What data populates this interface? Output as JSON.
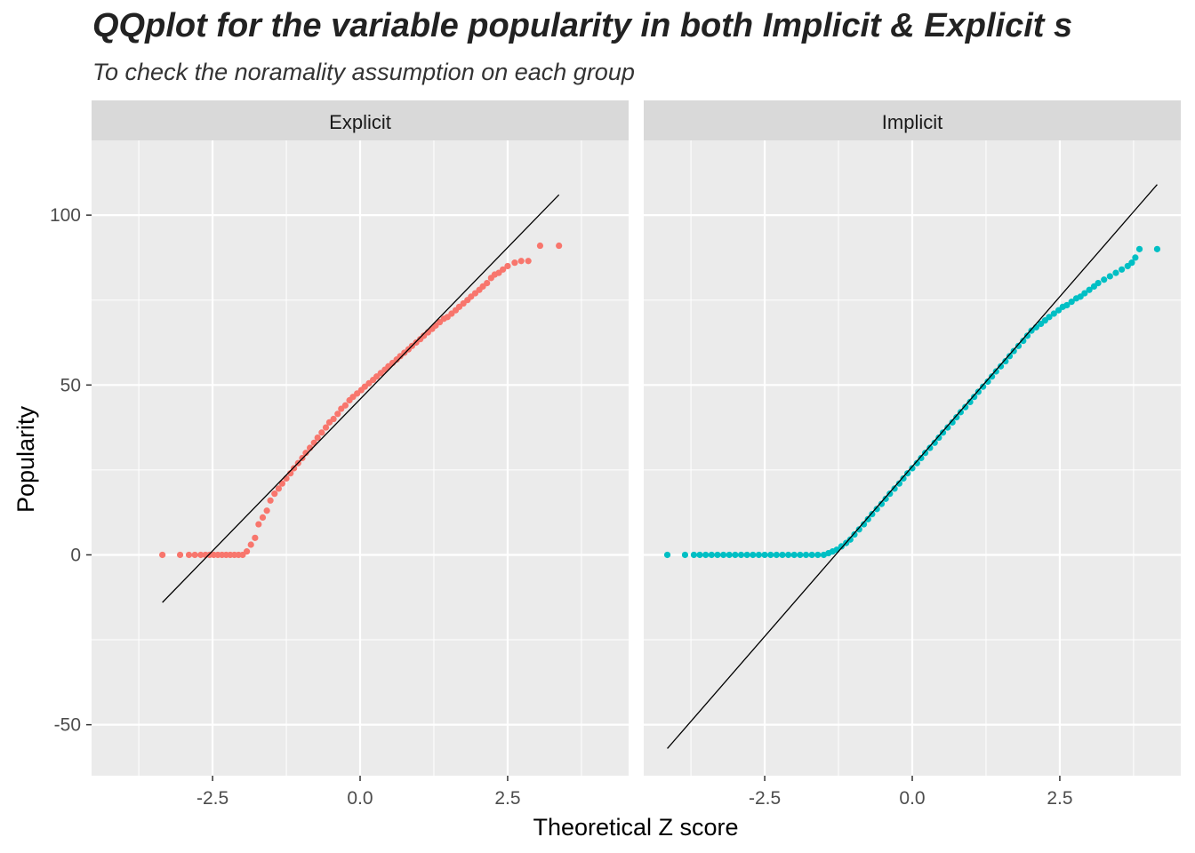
{
  "chart_data": {
    "type": "scatter",
    "title": "QQplot for the variable popularity in both Implicit & Explicit s",
    "subtitle": "To check the noramality assumption on each group",
    "xlabel": "Theoretical Z score",
    "ylabel": "Popularity",
    "xlim": [
      -4.55,
      4.55
    ],
    "ylim": [
      -65,
      122
    ],
    "x_ticks": [
      -2.5,
      0.0,
      2.5
    ],
    "x_tick_labels": [
      "-2.5",
      "0.0",
      "2.5"
    ],
    "y_ticks": [
      -50,
      0,
      50,
      100
    ],
    "y_tick_labels": [
      "-50",
      "0",
      "50",
      "100"
    ],
    "grid": true,
    "legend": "none",
    "panels": [
      {
        "name": "Explicit",
        "color": "#F8766D",
        "reference_line": {
          "x": [
            -3.35,
            3.37
          ],
          "y": [
            -14,
            106
          ]
        },
        "points": [
          [
            -3.35,
            0
          ],
          [
            -3.05,
            0
          ],
          [
            -2.9,
            0
          ],
          [
            -2.8,
            0
          ],
          [
            -2.7,
            0
          ],
          [
            -2.62,
            0
          ],
          [
            -2.55,
            0
          ],
          [
            -2.48,
            0
          ],
          [
            -2.41,
            0
          ],
          [
            -2.34,
            0
          ],
          [
            -2.27,
            0
          ],
          [
            -2.2,
            0
          ],
          [
            -2.13,
            0
          ],
          [
            -2.06,
            0
          ],
          [
            -1.99,
            0
          ],
          [
            -1.92,
            1
          ],
          [
            -1.85,
            3
          ],
          [
            -1.78,
            5
          ],
          [
            -1.72,
            9
          ],
          [
            -1.65,
            11
          ],
          [
            -1.58,
            13
          ],
          [
            -1.52,
            16
          ],
          [
            -1.45,
            18
          ],
          [
            -1.38,
            19.5
          ],
          [
            -1.32,
            21
          ],
          [
            -1.25,
            22.5
          ],
          [
            -1.18,
            24
          ],
          [
            -1.12,
            25.5
          ],
          [
            -1.05,
            27
          ],
          [
            -0.98,
            28.5
          ],
          [
            -0.92,
            30
          ],
          [
            -0.85,
            31.5
          ],
          [
            -0.78,
            33
          ],
          [
            -0.72,
            34.5
          ],
          [
            -0.65,
            36
          ],
          [
            -0.58,
            37.5
          ],
          [
            -0.52,
            39
          ],
          [
            -0.45,
            40
          ],
          [
            -0.38,
            41.5
          ],
          [
            -0.32,
            43
          ],
          [
            -0.25,
            44
          ],
          [
            -0.18,
            45.5
          ],
          [
            -0.12,
            46.5
          ],
          [
            -0.05,
            47.5
          ],
          [
            0.02,
            48.5
          ],
          [
            0.08,
            49.5
          ],
          [
            0.15,
            50.5
          ],
          [
            0.22,
            51.5
          ],
          [
            0.28,
            52.5
          ],
          [
            0.35,
            53.5
          ],
          [
            0.42,
            54.5
          ],
          [
            0.48,
            55.5
          ],
          [
            0.55,
            56.5
          ],
          [
            0.62,
            57.5
          ],
          [
            0.68,
            58.5
          ],
          [
            0.75,
            59.5
          ],
          [
            0.82,
            60.5
          ],
          [
            0.88,
            61.5
          ],
          [
            0.95,
            62.5
          ],
          [
            1.02,
            63.5
          ],
          [
            1.08,
            64.5
          ],
          [
            1.15,
            65.5
          ],
          [
            1.22,
            66.5
          ],
          [
            1.28,
            67.5
          ],
          [
            1.35,
            68.5
          ],
          [
            1.42,
            69.5
          ],
          [
            1.48,
            70
          ],
          [
            1.55,
            71
          ],
          [
            1.62,
            72
          ],
          [
            1.68,
            73
          ],
          [
            1.75,
            74
          ],
          [
            1.82,
            75
          ],
          [
            1.88,
            76
          ],
          [
            1.95,
            77
          ],
          [
            2.02,
            78
          ],
          [
            2.08,
            79
          ],
          [
            2.15,
            80
          ],
          [
            2.22,
            81.5
          ],
          [
            2.28,
            82.5
          ],
          [
            2.35,
            83
          ],
          [
            2.42,
            84
          ],
          [
            2.5,
            85
          ],
          [
            2.62,
            86
          ],
          [
            2.73,
            86.5
          ],
          [
            2.85,
            86.5
          ],
          [
            3.05,
            91
          ],
          [
            3.37,
            91
          ]
        ]
      },
      {
        "name": "Implicit",
        "color": "#00BFC4",
        "reference_line": {
          "x": [
            -4.15,
            4.15
          ],
          "y": [
            -57,
            109
          ]
        },
        "points": [
          [
            -4.15,
            0
          ],
          [
            -3.85,
            0
          ],
          [
            -3.7,
            0
          ],
          [
            -3.6,
            0
          ],
          [
            -3.5,
            0
          ],
          [
            -3.4,
            0
          ],
          [
            -3.3,
            0
          ],
          [
            -3.2,
            0
          ],
          [
            -3.1,
            0
          ],
          [
            -3.0,
            0
          ],
          [
            -2.9,
            0
          ],
          [
            -2.8,
            0
          ],
          [
            -2.7,
            0
          ],
          [
            -2.6,
            0
          ],
          [
            -2.5,
            0
          ],
          [
            -2.4,
            0
          ],
          [
            -2.3,
            0
          ],
          [
            -2.2,
            0
          ],
          [
            -2.1,
            0
          ],
          [
            -2.0,
            0
          ],
          [
            -1.9,
            0
          ],
          [
            -1.8,
            0
          ],
          [
            -1.7,
            0
          ],
          [
            -1.6,
            0
          ],
          [
            -1.5,
            0
          ],
          [
            -1.42,
            0.5
          ],
          [
            -1.35,
            1
          ],
          [
            -1.28,
            1.5
          ],
          [
            -1.2,
            2.5
          ],
          [
            -1.12,
            3.5
          ],
          [
            -1.05,
            4.5
          ],
          [
            -0.98,
            6
          ],
          [
            -0.9,
            7.5
          ],
          [
            -0.82,
            9
          ],
          [
            -0.75,
            10.5
          ],
          [
            -0.68,
            12
          ],
          [
            -0.6,
            13.5
          ],
          [
            -0.52,
            15
          ],
          [
            -0.45,
            16.5
          ],
          [
            -0.38,
            18
          ],
          [
            -0.3,
            19.5
          ],
          [
            -0.22,
            21
          ],
          [
            -0.15,
            22.5
          ],
          [
            -0.08,
            24
          ],
          [
            0.0,
            25.5
          ],
          [
            0.08,
            27
          ],
          [
            0.15,
            28.5
          ],
          [
            0.22,
            30
          ],
          [
            0.3,
            31.5
          ],
          [
            0.38,
            33
          ],
          [
            0.45,
            34.5
          ],
          [
            0.52,
            36
          ],
          [
            0.6,
            37.5
          ],
          [
            0.68,
            39
          ],
          [
            0.75,
            40.5
          ],
          [
            0.82,
            42
          ],
          [
            0.9,
            43.5
          ],
          [
            0.98,
            45
          ],
          [
            1.05,
            46.5
          ],
          [
            1.12,
            48
          ],
          [
            1.2,
            49.5
          ],
          [
            1.28,
            51
          ],
          [
            1.35,
            52.5
          ],
          [
            1.42,
            54
          ],
          [
            1.5,
            55.5
          ],
          [
            1.58,
            57
          ],
          [
            1.65,
            58.5
          ],
          [
            1.72,
            60
          ],
          [
            1.8,
            61.5
          ],
          [
            1.88,
            63
          ],
          [
            1.95,
            64.5
          ],
          [
            2.02,
            66
          ],
          [
            2.1,
            67
          ],
          [
            2.18,
            68
          ],
          [
            2.25,
            69
          ],
          [
            2.32,
            70
          ],
          [
            2.4,
            71
          ],
          [
            2.48,
            72
          ],
          [
            2.55,
            73
          ],
          [
            2.62,
            73.5
          ],
          [
            2.7,
            74.5
          ],
          [
            2.78,
            75.5
          ],
          [
            2.85,
            76
          ],
          [
            2.92,
            77
          ],
          [
            3.0,
            78
          ],
          [
            3.08,
            79
          ],
          [
            3.15,
            80
          ],
          [
            3.25,
            81
          ],
          [
            3.35,
            82
          ],
          [
            3.45,
            83
          ],
          [
            3.55,
            84
          ],
          [
            3.65,
            85
          ],
          [
            3.72,
            86
          ],
          [
            3.78,
            87.5
          ],
          [
            3.85,
            90
          ],
          [
            4.15,
            90
          ]
        ]
      }
    ]
  }
}
